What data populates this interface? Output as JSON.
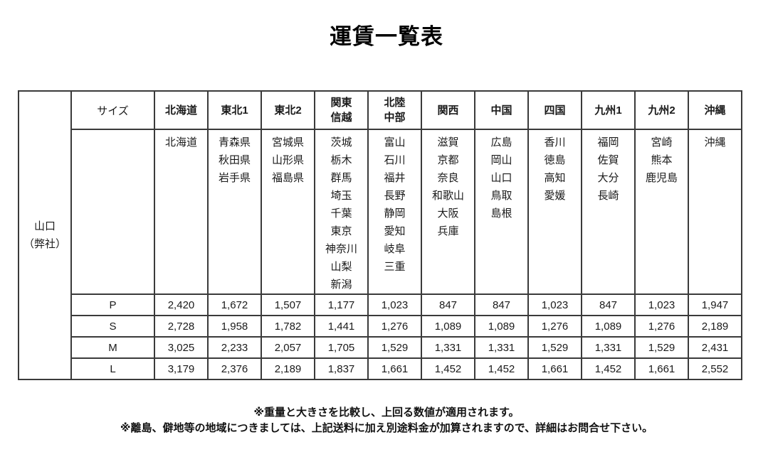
{
  "title": "運賃一覧表",
  "colors": {
    "origin_green": "#ccf542",
    "highlight_yellow": "#ffffcc",
    "border": "#3a3a3a"
  },
  "table": {
    "origin": {
      "line1": "山口",
      "line2": "（弊社）"
    },
    "size_header": "サイズ",
    "columns": [
      {
        "label_lines": [
          "北海道"
        ],
        "highlight": true,
        "prefectures": [
          "北海道"
        ]
      },
      {
        "label_lines": [
          "東北1"
        ],
        "highlight": false,
        "prefectures": [
          "青森県",
          "秋田県",
          "岩手県"
        ]
      },
      {
        "label_lines": [
          "東北2"
        ],
        "highlight": true,
        "prefectures": [
          "宮城県",
          "山形県",
          "福島県"
        ]
      },
      {
        "label_lines": [
          "関東",
          "信越"
        ],
        "highlight": false,
        "prefectures": [
          "茨城",
          "栃木",
          "群馬",
          "埼玉",
          "千葉",
          "東京",
          "神奈川",
          "山梨",
          "新潟"
        ]
      },
      {
        "label_lines": [
          "北陸",
          "中部"
        ],
        "highlight": true,
        "prefectures": [
          "富山",
          "石川",
          "福井",
          "長野",
          "静岡",
          "愛知",
          "岐阜",
          "三重"
        ]
      },
      {
        "label_lines": [
          "関西"
        ],
        "highlight": false,
        "prefectures": [
          "滋賀",
          "京都",
          "奈良",
          "和歌山",
          "大阪",
          "兵庫"
        ]
      },
      {
        "label_lines": [
          "中国"
        ],
        "highlight": true,
        "prefectures": [
          "広島",
          "岡山",
          "山口",
          "鳥取",
          "島根"
        ]
      },
      {
        "label_lines": [
          "四国"
        ],
        "highlight": false,
        "prefectures": [
          "香川",
          "徳島",
          "高知",
          "愛媛"
        ]
      },
      {
        "label_lines": [
          "九州1"
        ],
        "highlight": true,
        "prefectures": [
          "福岡",
          "佐賀",
          "大分",
          "長崎"
        ]
      },
      {
        "label_lines": [
          "九州2"
        ],
        "highlight": false,
        "prefectures": [
          "宮崎",
          "熊本",
          "鹿児島"
        ]
      },
      {
        "label_lines": [
          "沖縄"
        ],
        "highlight": true,
        "prefectures": [
          "沖縄"
        ]
      }
    ],
    "rows": [
      {
        "size": "P",
        "values": [
          "2,420",
          "1,672",
          "1,507",
          "1,177",
          "1,023",
          "847",
          "847",
          "1,023",
          "847",
          "1,023",
          "1,947"
        ]
      },
      {
        "size": "S",
        "values": [
          "2,728",
          "1,958",
          "1,782",
          "1,441",
          "1,276",
          "1,089",
          "1,089",
          "1,276",
          "1,089",
          "1,276",
          "2,189"
        ]
      },
      {
        "size": "M",
        "values": [
          "3,025",
          "2,233",
          "2,057",
          "1,705",
          "1,529",
          "1,331",
          "1,331",
          "1,529",
          "1,331",
          "1,529",
          "2,431"
        ]
      },
      {
        "size": "L",
        "values": [
          "3,179",
          "2,376",
          "2,189",
          "1,837",
          "1,661",
          "1,452",
          "1,452",
          "1,661",
          "1,452",
          "1,661",
          "2,552"
        ]
      }
    ]
  },
  "notes": [
    "※重量と大きさを比較し、上回る数値が適用されます。",
    "※離島、僻地等の地域につきましては、上記送料に加え別途料金が加算されますので、詳細はお問合せ下さい。"
  ]
}
